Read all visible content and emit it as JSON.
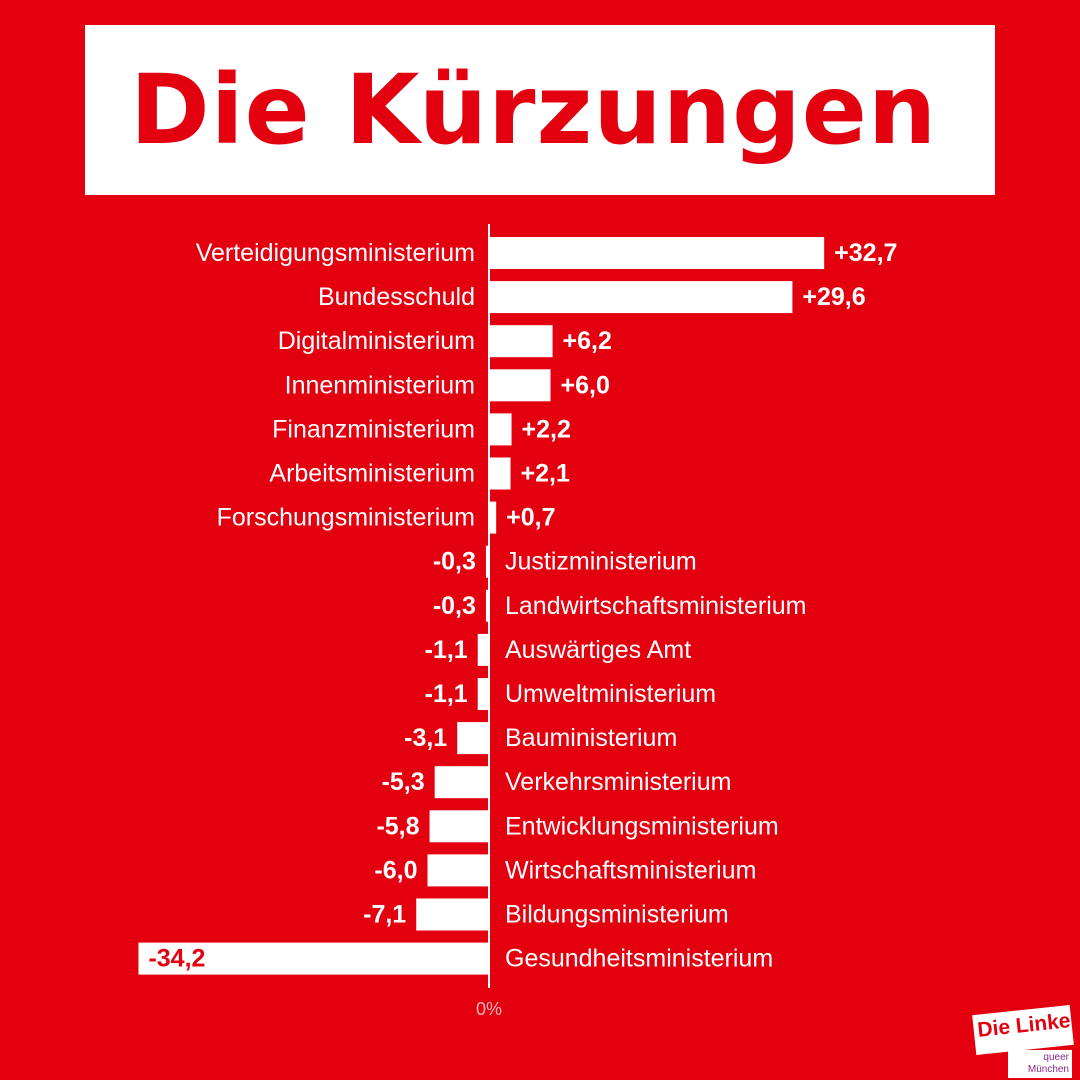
{
  "title": "Die Kürzungen",
  "logo": {
    "brand": "Die Linke",
    "line1": "queer",
    "line2": "München"
  },
  "colors": {
    "background": "#e3000f",
    "bar": "#ffffff",
    "text": "#ffffff",
    "title": "#e3000f",
    "zero_label": "#f3b5b9"
  },
  "chart_data": {
    "type": "bar",
    "orientation": "horizontal",
    "zero_label": "0%",
    "categories": [
      "Verteidigungsministerium",
      "Bundesschuld",
      "Digitalministerium",
      "Innenministerium",
      "Finanzministerium",
      "Arbeitsministerium",
      "Forschungsministerium",
      "Justizministerium",
      "Landwirtschaftsministerium",
      "Auswärtiges Amt",
      "Umweltministerium",
      "Bauministerium",
      "Verkehrsministerium",
      "Entwicklungsministerium",
      "Wirtschaftsministerium",
      "Bildungsministerium",
      "Gesundheitsministerium"
    ],
    "values": [
      32.7,
      29.6,
      6.2,
      6.0,
      2.2,
      2.1,
      0.7,
      -0.3,
      -0.3,
      -1.1,
      -1.1,
      -3.1,
      -5.3,
      -5.8,
      -6.0,
      -7.1,
      -34.2
    ],
    "value_labels": [
      "+32,7",
      "+29,6",
      "+6,2",
      "+6,0",
      "+2,2",
      "+2,1",
      "+0,7",
      "-0,3",
      "-0,3",
      "-1,1",
      "-1,1",
      "-3,1",
      "-5,3",
      "-5,8",
      "-6,0",
      "-7,1",
      "-34,2"
    ],
    "grid": false,
    "legend": "none"
  }
}
